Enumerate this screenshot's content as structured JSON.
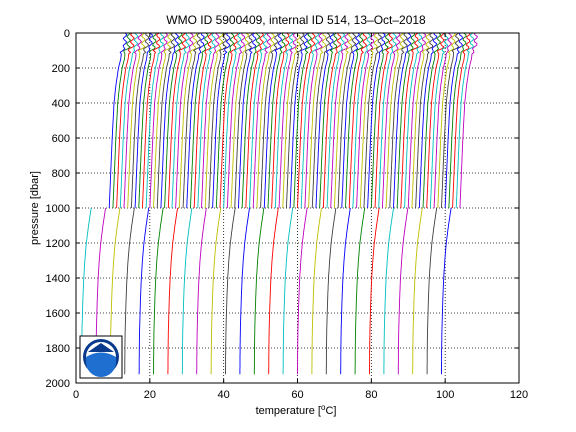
{
  "chart_data": {
    "type": "line",
    "title": "WMO ID 5900409, internal ID 514, 13–Oct–2018",
    "xlabel": "temperature [",
    "xlabel_unit_sup": "o",
    "xlabel_unit": "C]",
    "ylabel": "pressure [dbar]",
    "xlim": [
      0,
      120
    ],
    "ylim": [
      2000,
      0
    ],
    "y_reversed": true,
    "x_ticks": [
      0,
      20,
      40,
      60,
      80,
      100,
      120
    ],
    "y_ticks": [
      0,
      200,
      400,
      600,
      800,
      1000,
      1200,
      1400,
      1600,
      1800,
      2000
    ],
    "grid": "dotted",
    "colors": [
      "#0000ff",
      "#008000",
      "#ff0000",
      "#00bfbf",
      "#bf00bf",
      "#bfbf00",
      "#404040"
    ],
    "waterfall": {
      "shallow": {
        "count": 96,
        "first_offset": 13.0,
        "spacing": 1.0,
        "pressure_range": [
          0,
          1000
        ]
      },
      "deep": {
        "count": 26,
        "first_offset": 1.5,
        "spacing": 3.9,
        "pressure_range": [
          1000,
          1950
        ]
      }
    },
    "profile_shape": {
      "pressure": [
        0,
        80,
        100,
        150,
        200,
        300,
        400,
        600,
        800,
        1000
      ],
      "temperature_anomaly": [
        0.3,
        0.2,
        -0.6,
        -0.9,
        -1.5,
        -2.2,
        -2.7,
        -3.2,
        -3.6,
        -4.0
      ]
    },
    "deep_shape": {
      "pressure": [
        1000,
        1100,
        1200,
        1300,
        1400,
        1500,
        1600,
        1700,
        1800,
        1950
      ],
      "temperature_anomaly": [
        2.6,
        1.9,
        1.3,
        0.9,
        0.6,
        0.4,
        0.25,
        0.12,
        0.05,
        0.0
      ]
    }
  },
  "logo": {
    "text": "NOAA",
    "colors": [
      "#0a3a8c",
      "#1e6fd0",
      "#ffffff"
    ]
  }
}
